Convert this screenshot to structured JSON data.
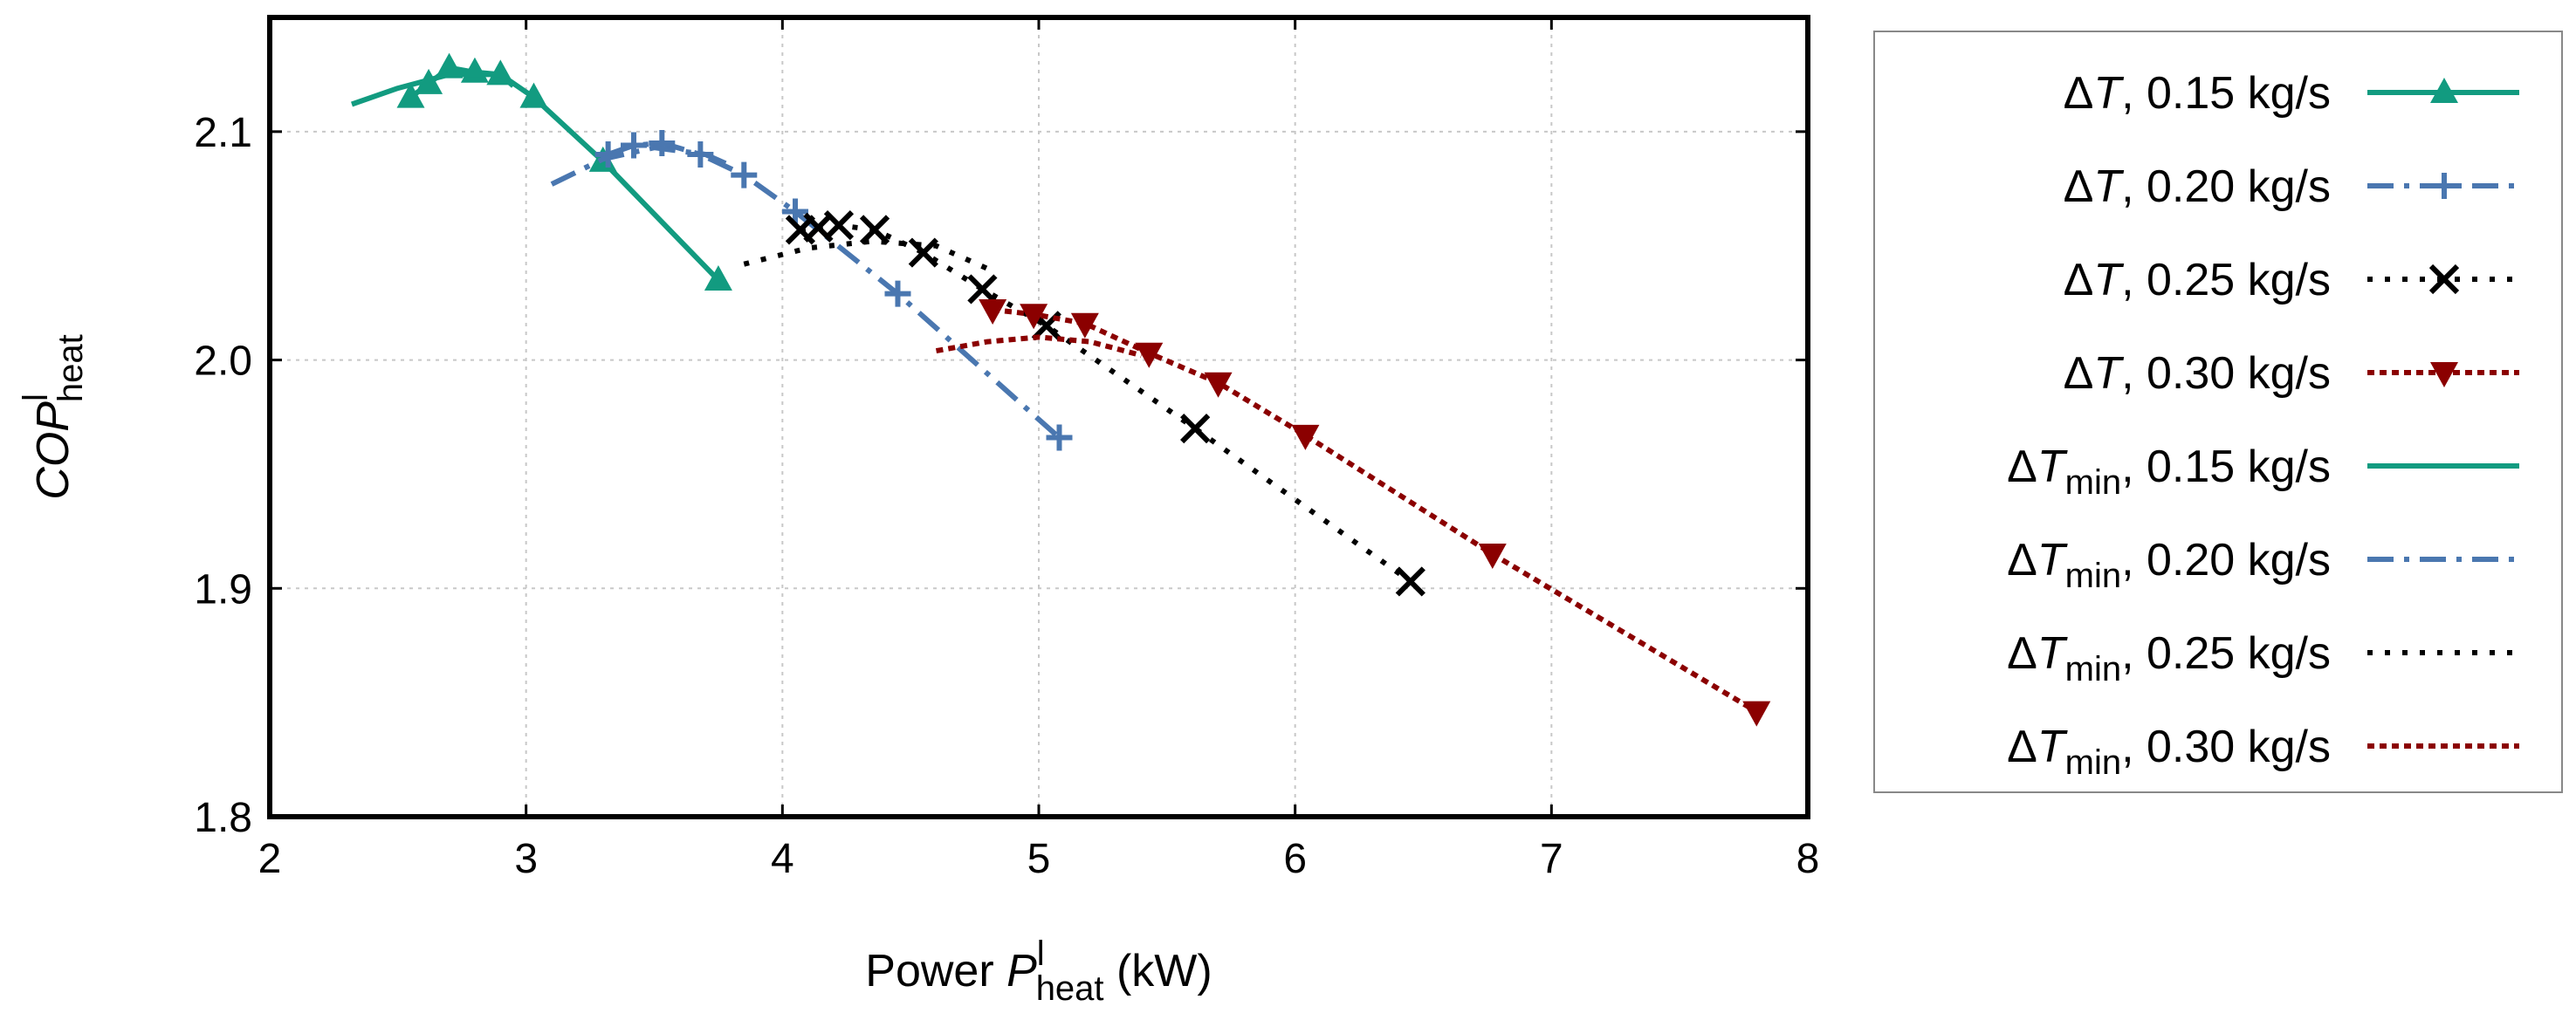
{
  "chart_data": {
    "type": "line",
    "xlabel": {
      "main": "Power ",
      "var": "P",
      "sup": "l",
      "sub": "heat",
      "unit": " (kW)"
    },
    "ylabel": {
      "var": "COP",
      "sup": "l",
      "sub": "heat"
    },
    "xlim": [
      2,
      8
    ],
    "ylim": [
      1.8,
      2.15
    ],
    "xticks": [
      2,
      3,
      4,
      5,
      6,
      7,
      8
    ],
    "xtick_labels": [
      "2",
      "3",
      "4",
      "5",
      "6",
      "7",
      "8"
    ],
    "yticks": [
      1.8,
      1.9,
      2.0,
      2.1
    ],
    "ytick_labels": [
      "1.8",
      "1.9",
      "2.0",
      "2.1"
    ],
    "grid": true,
    "legend_position": "outside-right",
    "series": [
      {
        "name": "ΔT, 0.15 kg/s",
        "symbol": "ΔT",
        "sub": "",
        "rate": ", 0.15 kg/s",
        "color": "#129b80",
        "dash": "",
        "marker": "triangle-up",
        "x": [
          2.55,
          2.62,
          2.7,
          2.8,
          2.9,
          3.03,
          3.3,
          3.75
        ],
        "y": [
          2.115,
          2.121,
          2.128,
          2.126,
          2.125,
          2.115,
          2.087,
          2.035
        ]
      },
      {
        "name": "ΔT, 0.20 kg/s",
        "symbol": "ΔT",
        "sub": "",
        "rate": ", 0.20 kg/s",
        "color": "#4a77b0",
        "dash": "30 12 6 12",
        "marker": "plus",
        "x": [
          3.32,
          3.42,
          3.53,
          3.68,
          3.85,
          4.05,
          4.45,
          5.08
        ],
        "y": [
          2.09,
          2.094,
          2.095,
          2.09,
          2.081,
          2.065,
          2.029,
          1.966
        ]
      },
      {
        "name": "ΔT, 0.25 kg/s",
        "symbol": "ΔT",
        "sub": "",
        "rate": ", 0.25 kg/s",
        "color": "#000000",
        "dash": "6 14",
        "marker": "cross",
        "x": [
          4.07,
          4.14,
          4.22,
          4.36,
          4.55,
          4.78,
          5.03,
          5.61,
          6.45
        ],
        "y": [
          2.057,
          2.058,
          2.059,
          2.057,
          2.047,
          2.031,
          2.015,
          1.97,
          1.903
        ]
      },
      {
        "name": "ΔT, 0.30 kg/s",
        "symbol": "ΔT",
        "sub": "",
        "rate": ", 0.30 kg/s",
        "color": "#8b0000",
        "dash": "8 6",
        "marker": "triangle-down",
        "x": [
          4.82,
          4.98,
          5.18,
          5.43,
          5.7,
          6.04,
          6.77,
          7.8
        ],
        "y": [
          2.022,
          2.02,
          2.016,
          2.003,
          1.99,
          1.967,
          1.915,
          1.846
        ]
      },
      {
        "name": "ΔTmin, 0.15 kg/s",
        "symbol": "ΔT",
        "sub": "min",
        "rate": ", 0.15 kg/s",
        "color": "#129b80",
        "dash": "",
        "marker": "none",
        "x": [
          2.32,
          2.5,
          2.7,
          2.9,
          2.95
        ],
        "y": [
          2.112,
          2.119,
          2.125,
          2.125,
          2.12
        ]
      },
      {
        "name": "ΔTmin, 0.20 kg/s",
        "symbol": "ΔT",
        "sub": "min",
        "rate": ", 0.20 kg/s",
        "color": "#4a77b0",
        "dash": "30 12 6 12",
        "marker": "none",
        "x": [
          3.1,
          3.3,
          3.5,
          3.7,
          3.8
        ],
        "y": [
          2.077,
          2.088,
          2.093,
          2.09,
          2.085
        ]
      },
      {
        "name": "ΔTmin, 0.25 kg/s",
        "symbol": "ΔT",
        "sub": "min",
        "rate": ", 0.25 kg/s",
        "color": "#000000",
        "dash": "6 14",
        "marker": "none",
        "x": [
          3.85,
          4.1,
          4.35,
          4.6,
          4.8
        ],
        "y": [
          2.042,
          2.049,
          2.052,
          2.05,
          2.04
        ]
      },
      {
        "name": "ΔTmin, 0.30 kg/s",
        "symbol": "ΔT",
        "sub": "min",
        "rate": ", 0.30 kg/s",
        "color": "#8b0000",
        "dash": "8 6",
        "marker": "none",
        "x": [
          4.6,
          4.8,
          5.0,
          5.2,
          5.4
        ],
        "y": [
          2.004,
          2.008,
          2.01,
          2.008,
          2.002
        ]
      }
    ]
  }
}
